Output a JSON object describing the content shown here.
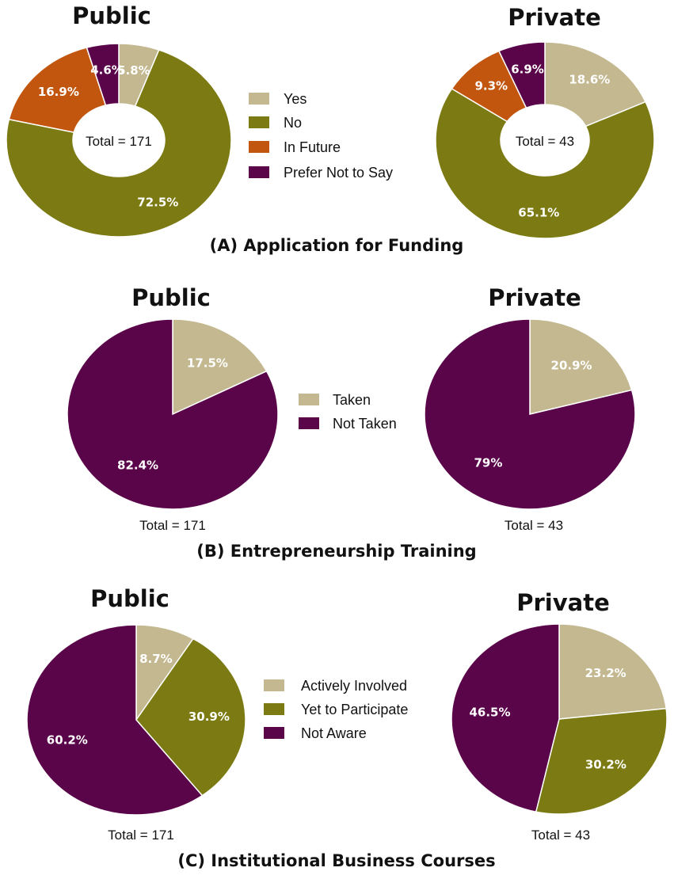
{
  "colors": {
    "tan": "#c3b88f",
    "olive": "#7c7a12",
    "orange": "#c2560e",
    "purple": "#5a0549",
    "text": "#111111",
    "label": "#ffffff"
  },
  "chart_data": [
    {
      "section": "(A) Application for Funding",
      "type": "pie",
      "style": "donut",
      "legend": [
        {
          "label": "Yes",
          "color": "#c3b88f"
        },
        {
          "label": "No",
          "color": "#7c7a12"
        },
        {
          "label": "In Future",
          "color": "#c2560e"
        },
        {
          "label": "Prefer Not to Say",
          "color": "#5a0549"
        }
      ],
      "charts": [
        {
          "title": "Public",
          "total": "Total = 171",
          "slices": [
            {
              "name": "Yes",
              "value": 5.8,
              "label": "5.8%",
              "color": "#c3b88f"
            },
            {
              "name": "No",
              "value": 72.5,
              "label": "72.5%",
              "color": "#7c7a12"
            },
            {
              "name": "In Future",
              "value": 16.9,
              "label": "16.9%",
              "color": "#c2560e"
            },
            {
              "name": "Prefer Not to Say",
              "value": 4.6,
              "label": "4.6%",
              "color": "#5a0549"
            }
          ]
        },
        {
          "title": "Private",
          "total": "Total = 43",
          "slices": [
            {
              "name": "Yes",
              "value": 18.6,
              "label": "18.6%",
              "color": "#c3b88f"
            },
            {
              "name": "No",
              "value": 65.1,
              "label": "65.1%",
              "color": "#7c7a12"
            },
            {
              "name": "In Future",
              "value": 9.3,
              "label": "9.3%",
              "color": "#c2560e"
            },
            {
              "name": "Prefer Not to Say",
              "value": 6.9,
              "label": "6.9%",
              "color": "#5a0549"
            }
          ]
        }
      ]
    },
    {
      "section": "(B) Entrepreneurship Training",
      "type": "pie",
      "legend": [
        {
          "label": "Taken",
          "color": "#c3b88f"
        },
        {
          "label": "Not Taken",
          "color": "#5a0549"
        }
      ],
      "charts": [
        {
          "title": "Public",
          "total": "Total = 171",
          "slices": [
            {
              "name": "Taken",
              "value": 17.5,
              "label": "17.5%",
              "color": "#c3b88f"
            },
            {
              "name": "Not Taken",
              "value": 82.4,
              "label": "82.4%",
              "color": "#5a0549"
            }
          ]
        },
        {
          "title": "Private",
          "total": "Total = 43",
          "slices": [
            {
              "name": "Taken",
              "value": 20.9,
              "label": "20.9%",
              "color": "#c3b88f"
            },
            {
              "name": "Not Taken",
              "value": 79,
              "label": "79%",
              "color": "#5a0549"
            }
          ]
        }
      ]
    },
    {
      "section": "(C) Institutional Business Courses",
      "type": "pie",
      "legend": [
        {
          "label": "Actively Involved",
          "color": "#c3b88f"
        },
        {
          "label": "Yet to Participate",
          "color": "#7c7a12"
        },
        {
          "label": "Not Aware",
          "color": "#5a0549"
        }
      ],
      "charts": [
        {
          "title": "Public",
          "total": "Total = 171",
          "slices": [
            {
              "name": "Actively Involved",
              "value": 8.7,
              "label": "8.7%",
              "color": "#c3b88f"
            },
            {
              "name": "Yet to Participate",
              "value": 30.9,
              "label": "30.9%",
              "color": "#7c7a12"
            },
            {
              "name": "Not Aware",
              "value": 60.2,
              "label": "60.2%",
              "color": "#5a0549"
            }
          ]
        },
        {
          "title": "Private",
          "total": "Total = 43",
          "slices": [
            {
              "name": "Actively Involved",
              "value": 23.2,
              "label": "23.2%",
              "color": "#c3b88f"
            },
            {
              "name": "Yet to Participate",
              "value": 30.2,
              "label": "30.2%",
              "color": "#7c7a12"
            },
            {
              "name": "Not Aware",
              "value": 46.5,
              "label": "46.5%",
              "color": "#5a0549"
            }
          ]
        }
      ]
    }
  ]
}
